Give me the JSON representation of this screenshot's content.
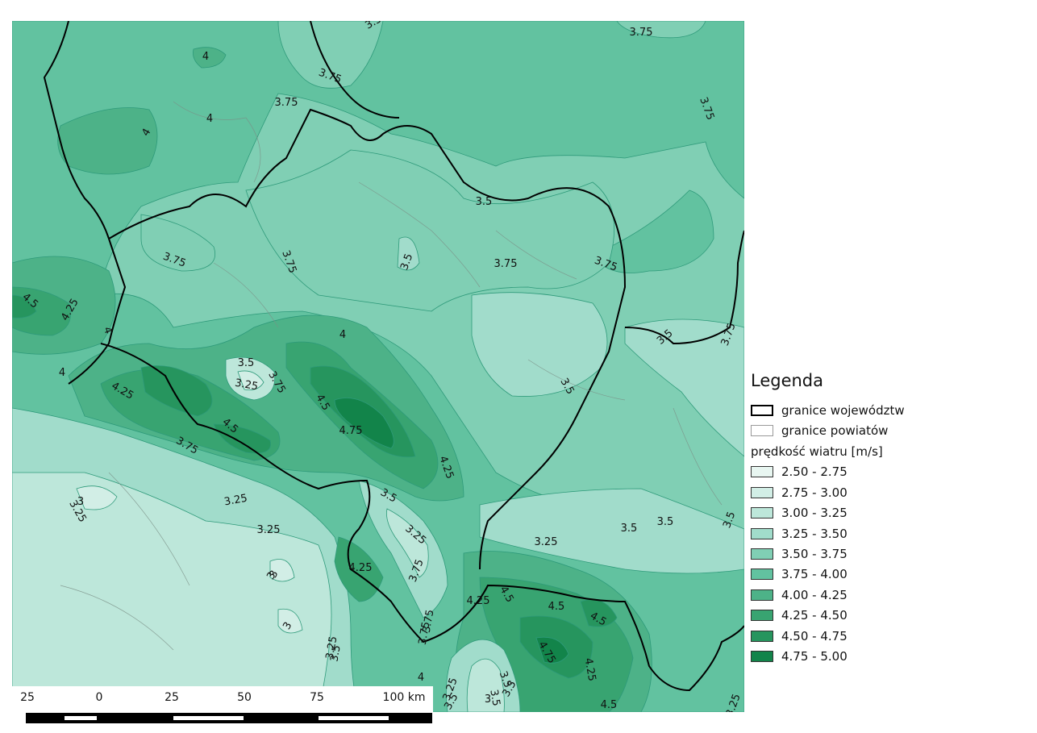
{
  "legend": {
    "title": "Legenda",
    "boundaries": [
      {
        "label": "granice województw",
        "style": "thick"
      },
      {
        "label": "granice powiatów",
        "style": "thin"
      }
    ],
    "subtitle": "prędkość wiatru [m/s]",
    "classes": [
      {
        "label": "2.50 - 2.75",
        "color": "#e8f6f1"
      },
      {
        "label": "2.75 - 3.00",
        "color": "#d2eee6"
      },
      {
        "label": "3.00 - 3.25",
        "color": "#bde7da"
      },
      {
        "label": "3.25 - 3.50",
        "color": "#a1dccb"
      },
      {
        "label": "3.50 - 3.75",
        "color": "#80cfb4"
      },
      {
        "label": "3.75 - 4.00",
        "color": "#62c2a0"
      },
      {
        "label": "4.00 - 4.25",
        "color": "#4db288"
      },
      {
        "label": "4.25 - 4.50",
        "color": "#38a471"
      },
      {
        "label": "4.50 - 4.75",
        "color": "#26955e"
      },
      {
        "label": "4.75 - 5.00",
        "color": "#12844a"
      }
    ]
  },
  "scalebar": {
    "labels": [
      "25",
      "0",
      "25",
      "50",
      "75",
      "100 km"
    ]
  },
  "contour_labels": [
    "3.5",
    "3.75",
    "3.75",
    "3.75",
    "3.75",
    "4",
    "4",
    "4",
    "3.75",
    "3.5",
    "3.5",
    "3.75",
    "3.75",
    "3.75",
    "4.5",
    "4.25",
    "4",
    "4",
    "4",
    "3.5",
    "3.25",
    "3.75",
    "4.5",
    "4.75",
    "4.25",
    "4.25",
    "4.5",
    "3.75",
    "3.5",
    "3.75",
    "3.5",
    "3.25",
    "3.25",
    "3.25",
    "3",
    "3",
    "3",
    "3.25",
    "3.75",
    "4.25",
    "3.75",
    "3.5",
    "3.25",
    "3.5",
    "3.5",
    "4.25",
    "4.5",
    "4.5",
    "4.5",
    "4.75",
    "4.25",
    "4.5",
    "3.5",
    "3.5",
    "4",
    "3.25",
    "3.5",
    "3",
    "3.25",
    "3",
    "3.5",
    "3.25",
    "3.5",
    "3.75",
    "3.5"
  ]
}
